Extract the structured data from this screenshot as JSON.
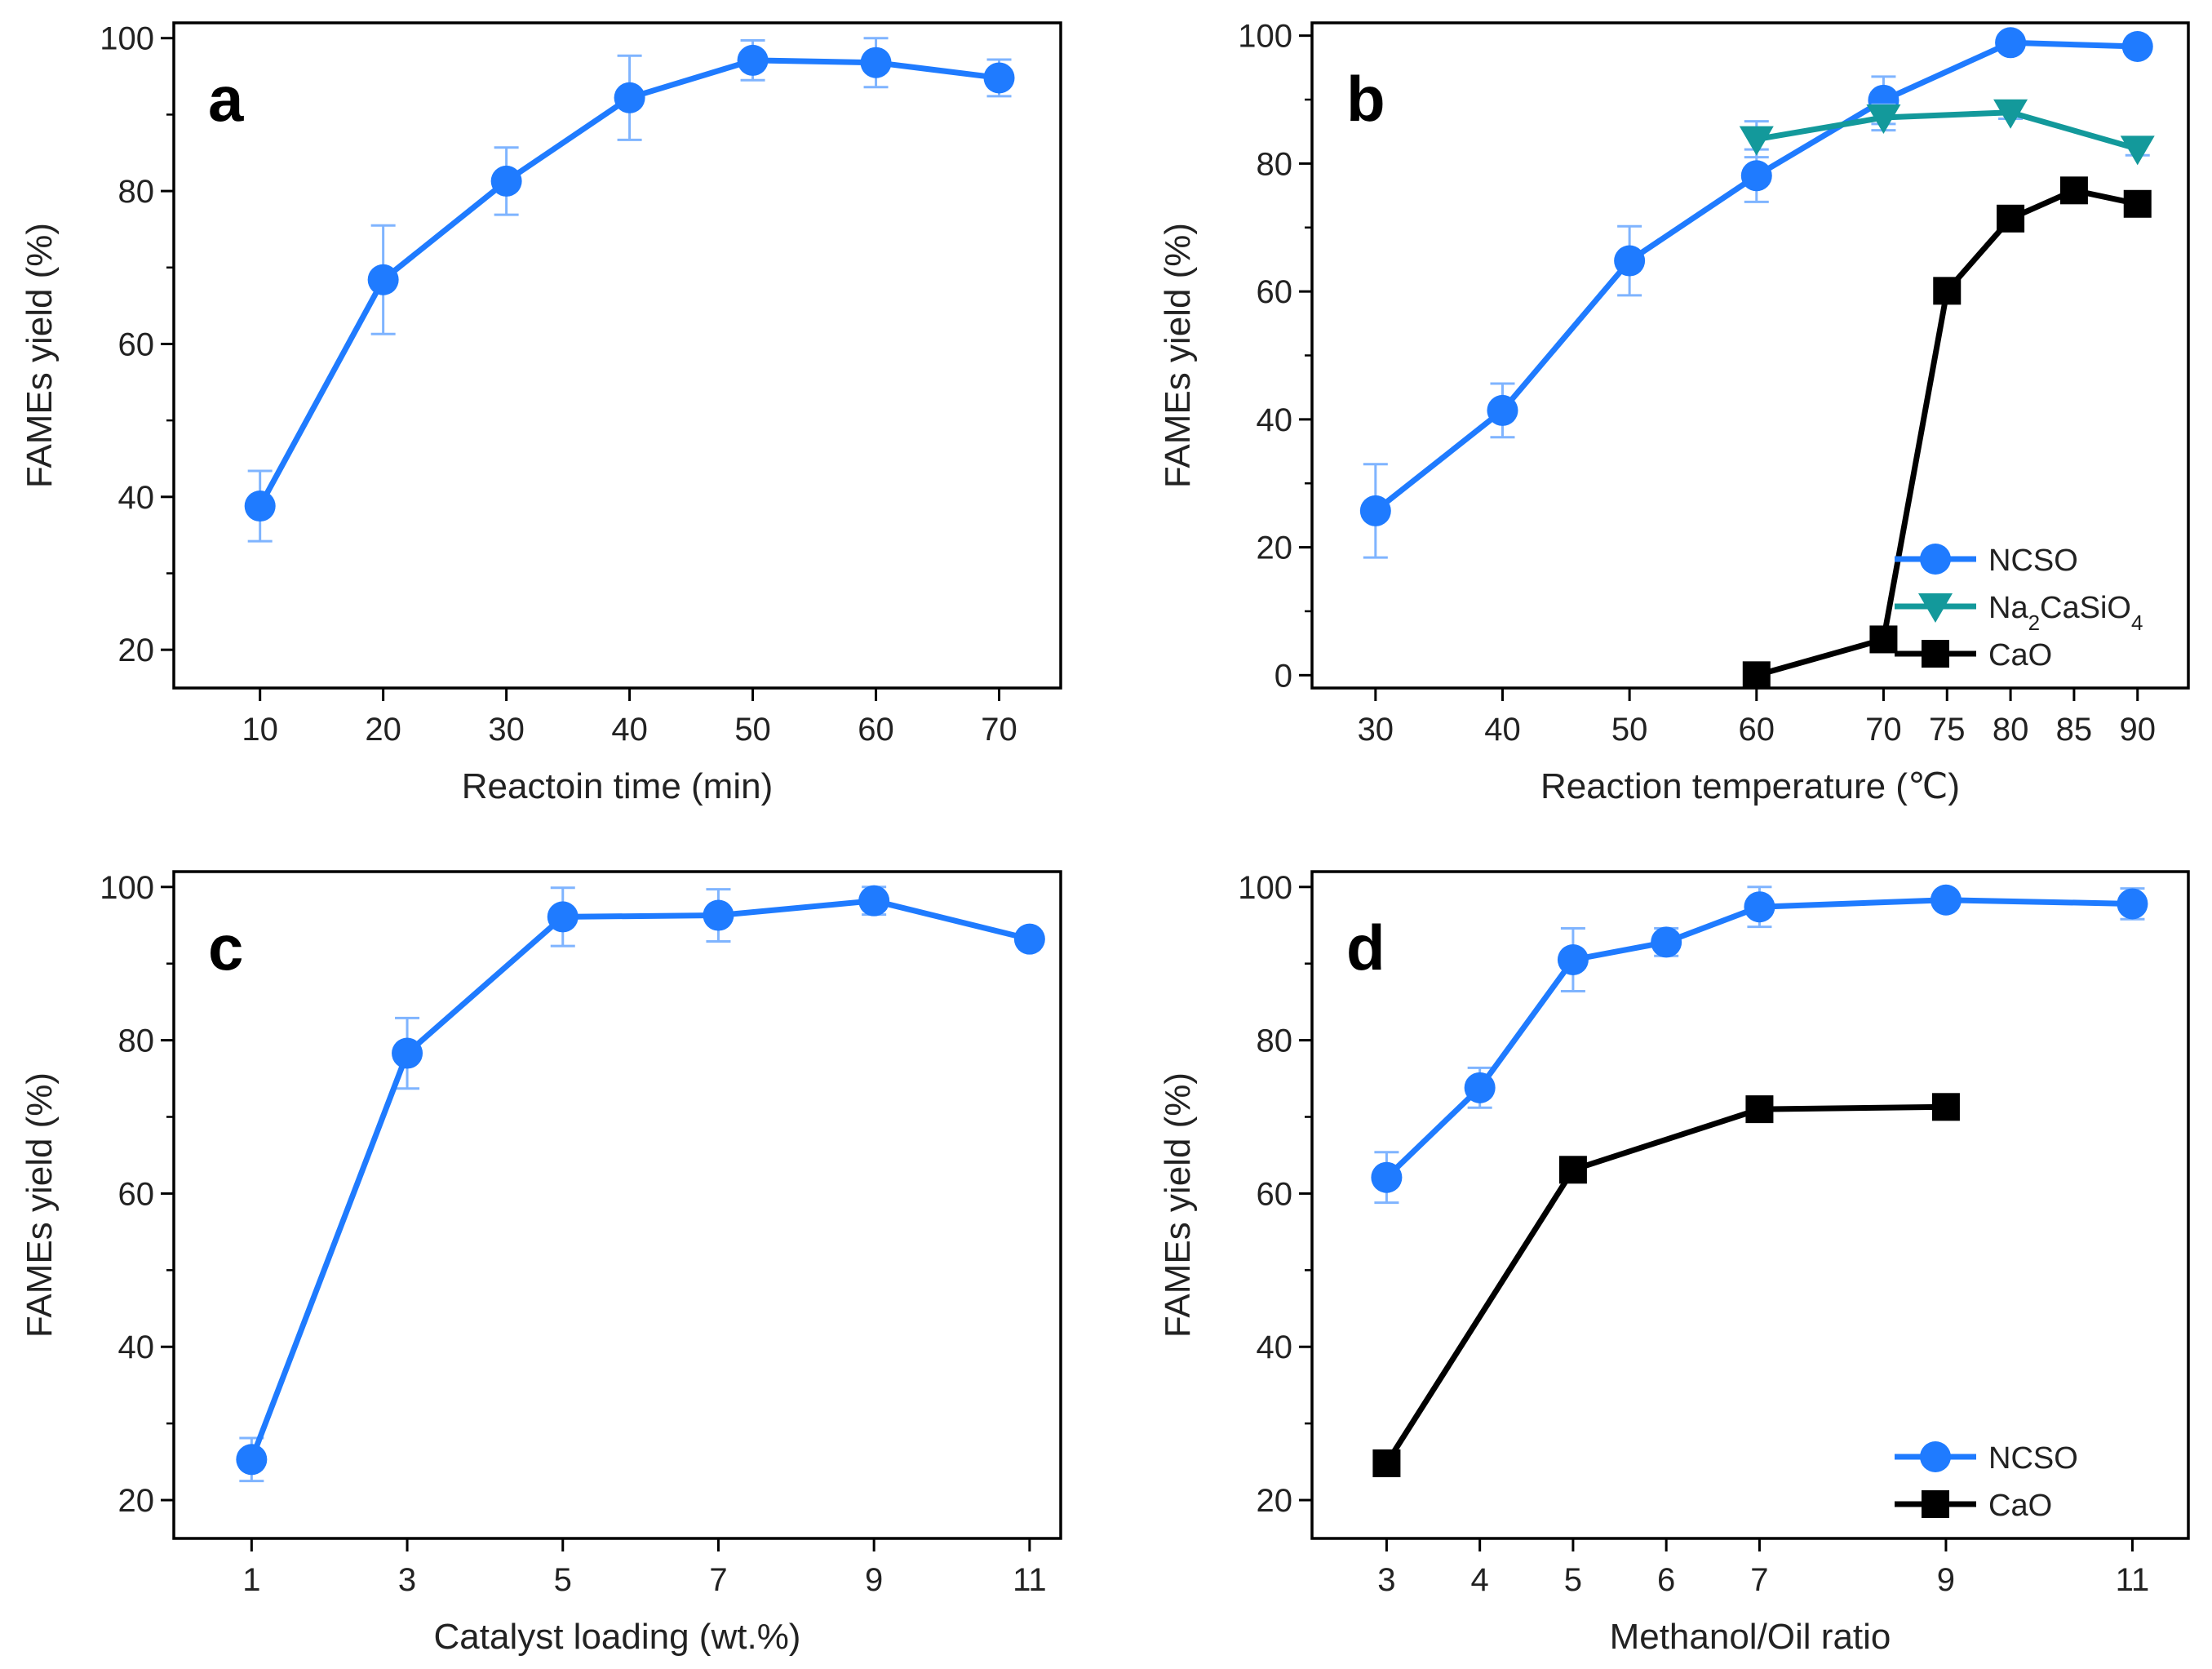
{
  "colors": {
    "ncso": "#1f7bff",
    "errorbar": "#7fb4ff",
    "na2casio4": "#13999b",
    "cao": "#000000",
    "frame": "#000000"
  },
  "chart_data": [
    {
      "panel": "a",
      "type": "line",
      "xlabel": "Reactoin time (min)",
      "ylabel": "FAMEs yield (%)",
      "xlim": [
        3,
        75
      ],
      "ylim": [
        15,
        102
      ],
      "xticks": [
        10,
        20,
        30,
        40,
        50,
        60,
        70
      ],
      "xtick_labels": [
        "10",
        "20",
        "30",
        "40",
        "50",
        "60",
        "70"
      ],
      "yticks": [
        20,
        40,
        60,
        80,
        100
      ],
      "ytick_labels": [
        "20",
        "40",
        "60",
        "80",
        "100"
      ],
      "legend": [],
      "series": [
        {
          "name": "NCSO",
          "marker": "circle",
          "color_key": "ncso",
          "x": [
            10,
            20,
            30,
            40,
            50,
            60,
            70
          ],
          "y": [
            38.8,
            68.4,
            81.3,
            92.2,
            97.1,
            96.8,
            94.8
          ],
          "err": [
            4.6,
            7.1,
            4.4,
            5.5,
            2.6,
            3.2,
            2.4
          ]
        }
      ]
    },
    {
      "panel": "b",
      "type": "line",
      "xlabel": "Reaction temperature (℃)",
      "ylabel": "FAMEs yield (%)",
      "xlim": [
        25,
        94
      ],
      "ylim": [
        -2,
        102
      ],
      "xticks": [
        30,
        40,
        50,
        60,
        70,
        75,
        80,
        85,
        90
      ],
      "xtick_labels": [
        "30",
        "40",
        "50",
        "60",
        "70",
        "75",
        "80",
        "85",
        "90"
      ],
      "yticks": [
        0,
        20,
        40,
        60,
        80,
        100
      ],
      "ytick_labels": [
        "0",
        "20",
        "40",
        "60",
        "80",
        "100"
      ],
      "legend_position": "bottom-right",
      "legend": [
        {
          "label": "NCSO",
          "marker": "circle",
          "color_key": "ncso"
        },
        {
          "label": "Na",
          "sub": "2",
          "label2": "CaSiO",
          "sub2": "4",
          "marker": "triangle-down",
          "color_key": "na2casio4"
        },
        {
          "label": "CaO",
          "marker": "square",
          "color_key": "cao"
        }
      ],
      "series": [
        {
          "name": "NCSO",
          "marker": "circle",
          "color_key": "ncso",
          "x": [
            30,
            40,
            50,
            60,
            70,
            80,
            90
          ],
          "y": [
            25.7,
            41.4,
            64.8,
            78.1,
            89.9,
            98.9,
            98.3
          ],
          "err": [
            7.3,
            4.2,
            5.4,
            4.1,
            3.7,
            1.0,
            1.0
          ]
        },
        {
          "name": "Na2CaSiO4",
          "marker": "triangle-down",
          "color_key": "na2casio4",
          "x": [
            60,
            70,
            80,
            90
          ],
          "y": [
            83.8,
            87.2,
            88.0,
            82.3
          ],
          "err": [
            2.8,
            2.0,
            1.0,
            1.0
          ]
        },
        {
          "name": "CaO",
          "marker": "square",
          "color_key": "cao",
          "x": [
            60,
            70,
            75,
            80,
            85,
            90
          ],
          "y": [
            0,
            5.6,
            60.1,
            71.4,
            75.8,
            73.7
          ],
          "err": []
        }
      ]
    },
    {
      "panel": "c",
      "type": "line",
      "xlabel": "Catalyst loading (wt.%)",
      "ylabel": "FAMEs yield (%)",
      "xlim": [
        0.0,
        11.4
      ],
      "ylim": [
        15,
        102
      ],
      "xticks": [
        1,
        3,
        5,
        7,
        9,
        11
      ],
      "xtick_labels": [
        "1",
        "3",
        "5",
        "7",
        "9",
        "11"
      ],
      "yticks": [
        20,
        40,
        60,
        80,
        100
      ],
      "ytick_labels": [
        "20",
        "40",
        "60",
        "80",
        "100"
      ],
      "legend": [],
      "series": [
        {
          "name": "NCSO",
          "marker": "circle",
          "color_key": "ncso",
          "x": [
            1,
            3,
            5,
            7,
            9,
            11
          ],
          "y": [
            25.3,
            78.3,
            96.1,
            96.3,
            98.2,
            93.2
          ],
          "err": [
            2.8,
            4.6,
            3.8,
            3.4,
            1.8,
            1.0
          ]
        }
      ]
    },
    {
      "panel": "d",
      "type": "line",
      "xlabel": "Methanol/Oil ratio",
      "ylabel": "FAMEs yield (%)",
      "xlim": [
        2.2,
        11.6
      ],
      "ylim": [
        15,
        102
      ],
      "xticks": [
        3,
        4,
        5,
        6,
        7,
        9,
        11
      ],
      "xtick_labels": [
        "3",
        "4",
        "5",
        "6",
        "7",
        "9",
        "11"
      ],
      "yticks": [
        20,
        40,
        60,
        80,
        100
      ],
      "ytick_labels": [
        "20",
        "40",
        "60",
        "80",
        "100"
      ],
      "legend_position": "bottom-right",
      "legend": [
        {
          "label": "NCSO",
          "marker": "circle",
          "color_key": "ncso"
        },
        {
          "label": "CaO",
          "marker": "square",
          "color_key": "cao"
        }
      ],
      "series": [
        {
          "name": "NCSO",
          "marker": "circle",
          "color_key": "ncso",
          "x": [
            3,
            4,
            5,
            6,
            7,
            9,
            11
          ],
          "y": [
            62.1,
            73.8,
            90.5,
            92.8,
            97.4,
            98.3,
            97.8
          ],
          "err": [
            3.3,
            2.6,
            4.1,
            1.8,
            2.6,
            1.0,
            2.0
          ]
        },
        {
          "name": "CaO",
          "marker": "square",
          "color_key": "cao",
          "x": [
            3,
            5,
            7,
            9
          ],
          "y": [
            24.8,
            63.1,
            71.0,
            71.3
          ],
          "err": []
        }
      ]
    }
  ]
}
